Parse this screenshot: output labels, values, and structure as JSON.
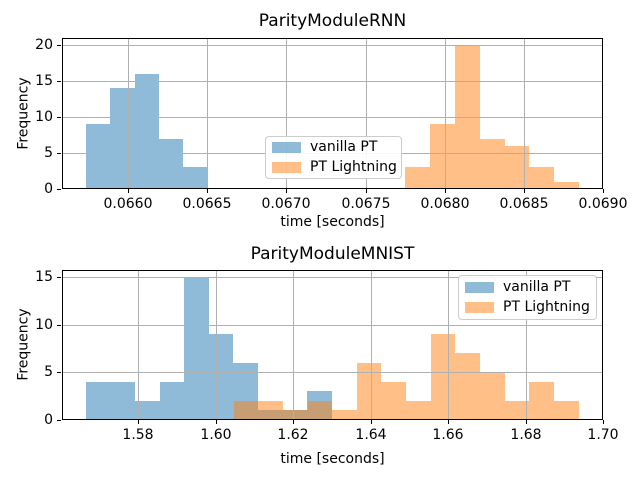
{
  "chart_data": [
    {
      "type": "histogram",
      "title": "ParityModuleRNN",
      "xlabel": "time [seconds]",
      "ylabel": "Frequency",
      "xlim": [
        0.065583,
        0.069
      ],
      "ylim": [
        0,
        21
      ],
      "grid": true,
      "legend_position": "lower-center",
      "xticks": {
        "values": [
          0.066,
          0.0665,
          0.067,
          0.0675,
          0.068,
          0.0685,
          0.069
        ],
        "labels": [
          "0.0660",
          "0.0665",
          "0.0670",
          "0.0675",
          "0.0680",
          "0.0685",
          "0.0690"
        ]
      },
      "yticks": {
        "values": [
          0,
          5,
          10,
          15,
          20
        ],
        "labels": [
          "0",
          "5",
          "10",
          "15",
          "20"
        ]
      },
      "series": [
        {
          "name": "vanilla PT",
          "color": "#1f77b4",
          "fill": "rgba(31,119,180,0.5)",
          "bin_edges": [
            0.065733,
            0.0658873,
            0.0660416,
            0.0661959,
            0.0663502,
            0.0665045
          ],
          "counts": [
            9,
            14,
            16,
            7,
            3
          ]
        },
        {
          "name": "PT Lightning",
          "color": "#ff7f0e",
          "fill": "rgba(255,127,14,0.5)",
          "bin_edges": [
            0.067752,
            0.0679085,
            0.068065,
            0.0682215,
            0.068378,
            0.0685345,
            0.068691,
            0.0688475
          ],
          "counts": [
            3,
            9,
            20,
            7,
            6,
            3,
            1
          ]
        }
      ]
    },
    {
      "type": "histogram",
      "title": "ParityModuleMNIST",
      "xlabel": "time [seconds]",
      "ylabel": "Frequency",
      "xlim": [
        1.56036,
        1.7
      ],
      "ylim": [
        0,
        15.75
      ],
      "grid": true,
      "legend_position": "upper-right",
      "xticks": {
        "values": [
          1.58,
          1.6,
          1.62,
          1.64,
          1.66,
          1.68,
          1.7
        ],
        "labels": [
          "1.58",
          "1.60",
          "1.62",
          "1.64",
          "1.66",
          "1.68",
          "1.70"
        ]
      },
      "yticks": {
        "values": [
          0,
          5,
          10,
          15
        ],
        "labels": [
          "0",
          "5",
          "10",
          "15"
        ]
      },
      "series": [
        {
          "name": "vanilla PT",
          "color": "#1f77b4",
          "fill": "rgba(31,119,180,0.5)",
          "bin_edges": [
            1.56649,
            1.57284,
            1.57919,
            1.58554,
            1.59188,
            1.59823,
            1.60458,
            1.61093,
            1.61728,
            1.62363,
            1.62998
          ],
          "counts": [
            4,
            4,
            2,
            4,
            15,
            9,
            6,
            1,
            1,
            3
          ]
        },
        {
          "name": "PT Lightning",
          "color": "#ff7f0e",
          "fill": "rgba(255,127,14,0.5)",
          "bin_edges": [
            1.60466,
            1.61102,
            1.61738,
            1.62374,
            1.6301,
            1.63645,
            1.64281,
            1.64917,
            1.65553,
            1.66189,
            1.66825,
            1.67461,
            1.68096,
            1.68732,
            1.69368
          ],
          "counts": [
            2,
            2,
            1,
            2,
            1,
            6,
            4,
            2,
            9,
            7,
            5,
            2,
            4,
            2
          ]
        }
      ]
    }
  ]
}
